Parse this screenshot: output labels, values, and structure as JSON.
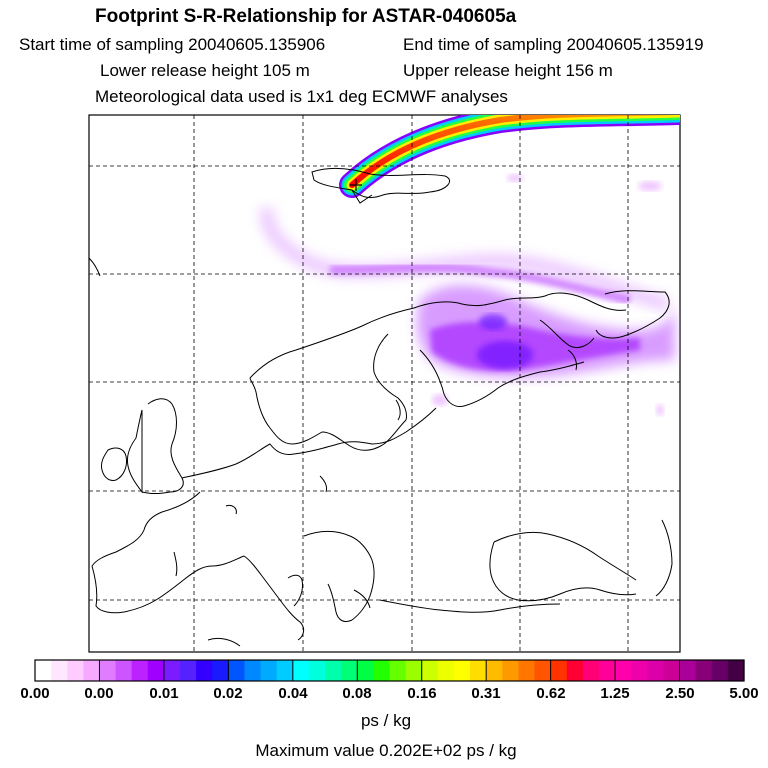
{
  "header": {
    "title": "Footprint S-R-Relationship for ASTAR-040605a",
    "start_time": "Start time of sampling 20040605.135906",
    "end_time": "End time of sampling 20040605.135919",
    "lower_height": "Lower release height  105 m",
    "upper_height": "Upper release height  156 m",
    "met_data": "Meteorological data used is 1x1 deg ECMWF analyses"
  },
  "colorbar": {
    "ticks": [
      "0.00",
      "0.00",
      "0.01",
      "0.02",
      "0.04",
      "0.08",
      "0.16",
      "0.31",
      "0.62",
      "1.25",
      "2.50",
      "5.00"
    ],
    "colors": [
      "#ffffff",
      "#ffe8ff",
      "#ffccff",
      "#f5aaff",
      "#e07cff",
      "#cc55ff",
      "#bb22ff",
      "#a000ff",
      "#7a1cff",
      "#5522ff",
      "#3300ff",
      "#1a1aff",
      "#0055ff",
      "#0088ff",
      "#00aaff",
      "#00ccff",
      "#00ffff",
      "#00ffdd",
      "#00ffaa",
      "#00ff77",
      "#00ff44",
      "#22ff00",
      "#66ff00",
      "#99ff00",
      "#ccff00",
      "#eeff00",
      "#ffff00",
      "#ffdd00",
      "#ffbb00",
      "#ff9900",
      "#ff7700",
      "#ff5500",
      "#ff3300",
      "#ff0033",
      "#ff0077",
      "#ff0099",
      "#ff00aa",
      "#ee00aa",
      "#dd00aa",
      "#cc0099",
      "#aa0099",
      "#880077",
      "#660066",
      "#440044"
    ],
    "unit": "ps / kg",
    "max_label": "Maximum value  0.202E+02 ps / kg"
  },
  "colors": {
    "coast": "#000000",
    "grid": "#000000",
    "plume_hot": "#ff2200",
    "footprint": "#b040ff"
  }
}
